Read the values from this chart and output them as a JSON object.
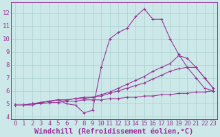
{
  "xlabel": "Windchill (Refroidissement éolien,°C)",
  "bg_color": "#cce8e8",
  "line_color": "#993399",
  "xlim": [
    -0.5,
    23.5
  ],
  "ylim": [
    3.8,
    12.8
  ],
  "yticks": [
    4,
    5,
    6,
    7,
    8,
    9,
    10,
    11,
    12
  ],
  "xticks": [
    0,
    1,
    2,
    3,
    4,
    5,
    6,
    7,
    8,
    9,
    10,
    11,
    12,
    13,
    14,
    15,
    16,
    17,
    18,
    19,
    20,
    21,
    22,
    23
  ],
  "series": [
    {
      "x": [
        0,
        1,
        2,
        3,
        4,
        5,
        6,
        7,
        8,
        9,
        10,
        11,
        12,
        13,
        14,
        15,
        16,
        17,
        18,
        19,
        20,
        21,
        22,
        23
      ],
      "y": [
        4.9,
        4.9,
        4.9,
        5.1,
        5.2,
        5.3,
        5.0,
        4.9,
        4.3,
        4.5,
        7.8,
        10.0,
        10.5,
        10.8,
        11.7,
        12.3,
        11.5,
        11.5,
        10.0,
        8.8,
        7.8,
        7.0,
        6.2,
        6.0
      ]
    },
    {
      "x": [
        0,
        1,
        2,
        3,
        4,
        5,
        6,
        7,
        8,
        9,
        10,
        11,
        12,
        13,
        14,
        15,
        16,
        17,
        18,
        19,
        20,
        21,
        22,
        23
      ],
      "y": [
        4.9,
        4.9,
        5.0,
        5.1,
        5.2,
        5.3,
        5.3,
        5.4,
        5.4,
        5.5,
        5.7,
        5.9,
        6.2,
        6.5,
        6.8,
        7.1,
        7.5,
        7.8,
        8.1,
        8.7,
        8.5,
        7.8,
        7.0,
        6.2
      ]
    },
    {
      "x": [
        0,
        1,
        2,
        3,
        4,
        5,
        6,
        7,
        8,
        9,
        10,
        11,
        12,
        13,
        14,
        15,
        16,
        17,
        18,
        19,
        20,
        21,
        22,
        23
      ],
      "y": [
        4.9,
        4.9,
        5.0,
        5.1,
        5.2,
        5.3,
        5.3,
        5.4,
        5.5,
        5.5,
        5.6,
        5.8,
        6.0,
        6.2,
        6.4,
        6.6,
        6.9,
        7.2,
        7.5,
        7.7,
        7.8,
        7.8,
        7.0,
        6.2
      ]
    },
    {
      "x": [
        0,
        1,
        2,
        3,
        4,
        5,
        6,
        7,
        8,
        9,
        10,
        11,
        12,
        13,
        14,
        15,
        16,
        17,
        18,
        19,
        20,
        21,
        22,
        23
      ],
      "y": [
        4.9,
        4.9,
        5.0,
        5.0,
        5.1,
        5.1,
        5.2,
        5.2,
        5.3,
        5.3,
        5.3,
        5.4,
        5.4,
        5.5,
        5.5,
        5.6,
        5.6,
        5.7,
        5.7,
        5.8,
        5.8,
        5.9,
        5.9,
        6.0
      ]
    }
  ],
  "grid_color": "#aad0d0",
  "tick_color": "#993399",
  "tick_fontsize": 6.5,
  "xlabel_fontsize": 7.5
}
